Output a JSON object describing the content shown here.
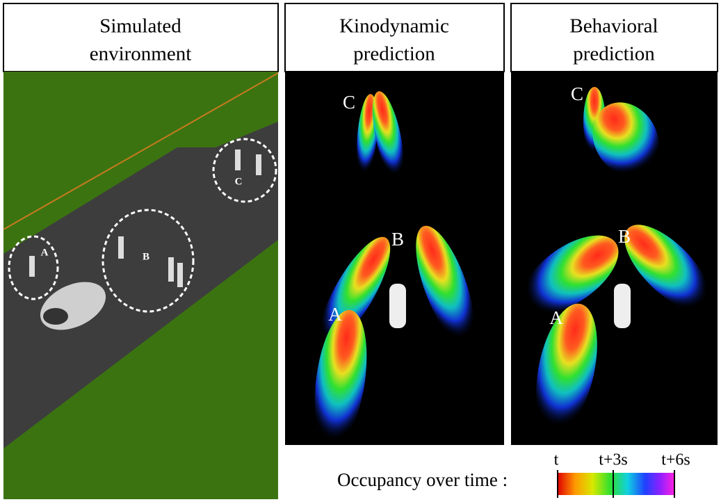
{
  "panels": [
    {
      "title_lines": [
        "Simulated",
        "environment"
      ],
      "labels": [
        "A",
        "B",
        "C"
      ]
    },
    {
      "title_lines": [
        "Kinodynamic",
        "prediction"
      ],
      "labels": [
        "A",
        "B",
        "C"
      ]
    },
    {
      "title_lines": [
        "Behavioral",
        "prediction"
      ],
      "labels": [
        "A",
        "B",
        "C"
      ]
    }
  ],
  "legend": {
    "label": "Occupancy over time :",
    "ticks": [
      "t",
      "t+3s",
      "t+6s"
    ]
  }
}
